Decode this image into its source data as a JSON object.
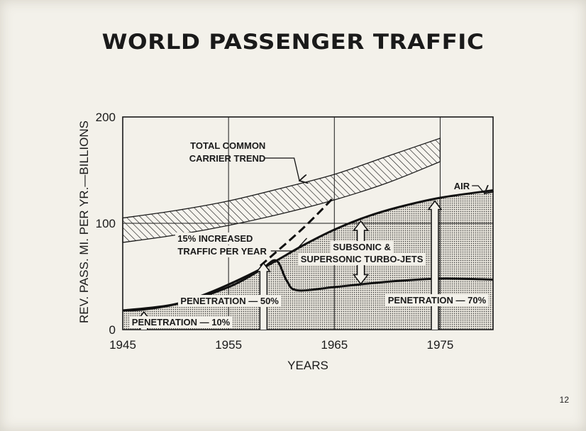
{
  "page": {
    "number": "12"
  },
  "chart_data": {
    "type": "line",
    "title": "WORLD PASSENGER TRAFFIC",
    "xlabel": "YEARS",
    "ylabel": "REV. PASS. MI. PER YR.—BILLIONS",
    "xlim": [
      1945,
      1980
    ],
    "ylim": [
      0,
      200
    ],
    "x_ticks": [
      "1945",
      "1955",
      "1965",
      "1975"
    ],
    "y_ticks": [
      "0",
      "100",
      "200"
    ],
    "grid": true,
    "series": [
      {
        "name": "AIR",
        "x": [
          1945,
          1947,
          1950,
          1953,
          1956,
          1959,
          1962,
          1965,
          1968,
          1971,
          1975,
          1980
        ],
        "y": [
          18,
          19,
          24,
          34,
          47,
          62,
          79,
          94,
          106,
          115,
          124,
          131
        ]
      },
      {
        "x": [
          1945,
          1950,
          1955,
          1958,
          1959.5,
          1960.5,
          1961.5,
          1965,
          1970,
          1975,
          1980
        ],
        "y": [
          18,
          24,
          40,
          56,
          65,
          46,
          37,
          40,
          45,
          48,
          47
        ]
      },
      {
        "x": [
          1945,
          1950,
          1955,
          1960,
          1965,
          1970,
          1975
        ],
        "y_low": [
          82,
          89,
          98,
          109,
          122,
          138,
          158
        ],
        "y_high": [
          105,
          112,
          121,
          133,
          146,
          163,
          180
        ]
      },
      {
        "x": [
          1958,
          1962,
          1965
        ],
        "y": [
          60,
          95,
          125
        ]
      }
    ],
    "annotations": {
      "total_common_line1": "TOTAL COMMON",
      "total_common_line2": "CARRIER TREND",
      "air": "AIR",
      "increase_line1": "15% INCREASED",
      "increase_line2": "TRAFFIC PER YEAR",
      "subsonic_line1": "SUBSONIC &",
      "subsonic_line2": "SUPERSONIC TURBO-JETS",
      "pen10": "PENETRATION — 10%",
      "pen50": "PENETRATION — 50%",
      "pen70": "PENETRATION — 70%"
    }
  }
}
